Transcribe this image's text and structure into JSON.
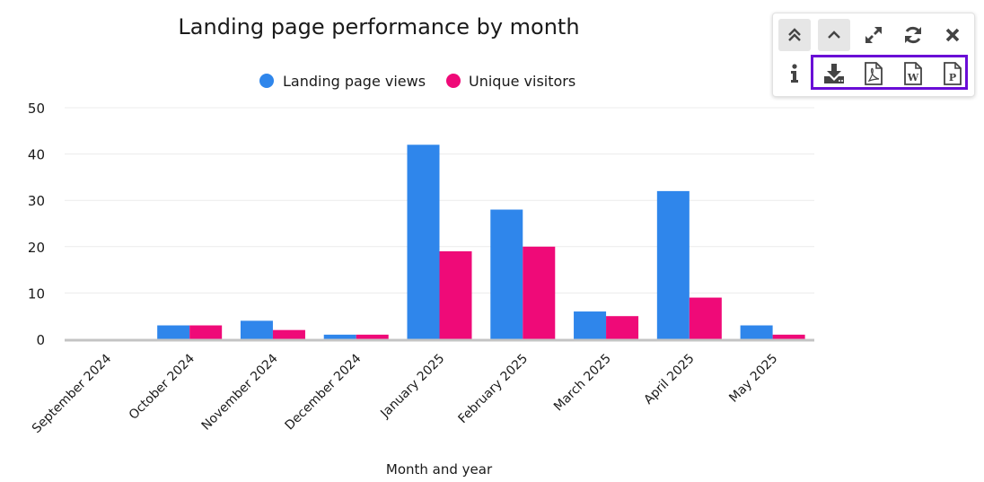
{
  "chart_data": {
    "type": "bar",
    "title": "Landing page performance by month",
    "xlabel": "Month and year",
    "ylabel": "",
    "ylim": [
      0,
      50
    ],
    "yticks": [
      0,
      10,
      20,
      30,
      40,
      50
    ],
    "grid": true,
    "legend_position": "top-center",
    "categories": [
      "September 2024",
      "October 2024",
      "November 2024",
      "December 2024",
      "January 2025",
      "February 2025",
      "March 2025",
      "April 2025",
      "May 2025"
    ],
    "series": [
      {
        "name": "Landing page views",
        "color": "#2f86eb",
        "values": [
          0,
          3,
          4,
          1,
          42,
          28,
          6,
          32,
          3
        ]
      },
      {
        "name": "Unique visitors",
        "color": "#ef0a78",
        "values": [
          0,
          3,
          2,
          1,
          19,
          20,
          5,
          9,
          1
        ]
      }
    ]
  },
  "toolbar": {
    "row1": [
      {
        "name": "collapse-all-button",
        "icon": "double-chevron-up-icon"
      },
      {
        "name": "collapse-button",
        "icon": "chevron-up-icon"
      },
      {
        "name": "expand-button",
        "icon": "expand-arrows-icon"
      },
      {
        "name": "refresh-button",
        "icon": "refresh-icon"
      },
      {
        "name": "close-button",
        "icon": "close-icon"
      }
    ],
    "row2": [
      {
        "name": "info-button",
        "icon": "info-icon"
      },
      {
        "name": "download-button",
        "icon": "download-icon"
      },
      {
        "name": "export-pdf-button",
        "icon": "pdf-file-icon"
      },
      {
        "name": "export-word-button",
        "icon": "word-file-icon",
        "glyph": "W"
      },
      {
        "name": "export-powerpoint-button",
        "icon": "powerpoint-file-icon",
        "glyph": "P"
      }
    ],
    "icon_color": "#444444",
    "highlight_color": "#6a0dd6"
  }
}
